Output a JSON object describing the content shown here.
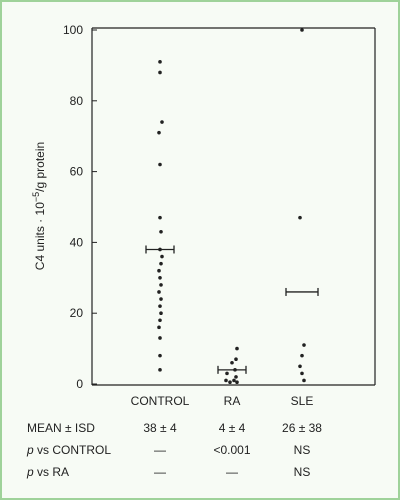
{
  "chart_data": {
    "type": "scatter",
    "ylabel_prefix": "C4 units",
    "ylabel_power": "10",
    "ylabel_exponent": "−5",
    "ylabel_suffix": "/g protein",
    "ylim": [
      0,
      100
    ],
    "yticks": [
      0,
      20,
      40,
      60,
      80,
      100
    ],
    "categories": [
      "CONTROL",
      "RA",
      "SLE"
    ],
    "points": [
      [
        91,
        88,
        74,
        71,
        62,
        47,
        43,
        38,
        36,
        34,
        32,
        30,
        28,
        26,
        24,
        22,
        20,
        18,
        16,
        13,
        8,
        4
      ],
      [
        10,
        7,
        6,
        4,
        3,
        2,
        1,
        1,
        0.5,
        0.5
      ],
      [
        100,
        47,
        11,
        8,
        5,
        3,
        1
      ]
    ],
    "means": [
      38,
      4,
      26
    ],
    "grid": false
  },
  "table": {
    "rows": [
      {
        "label": "MEAN ± ISD",
        "italic_prefix": "",
        "values": [
          "38 ± 4",
          "4 ± 4",
          "26 ± 38"
        ]
      },
      {
        "label": " vs CONTROL",
        "italic_prefix": "p",
        "values": [
          "—",
          "<0.001",
          "NS"
        ]
      },
      {
        "label": " vs RA",
        "italic_prefix": "p",
        "values": [
          "—",
          "—",
          "NS"
        ]
      }
    ]
  }
}
